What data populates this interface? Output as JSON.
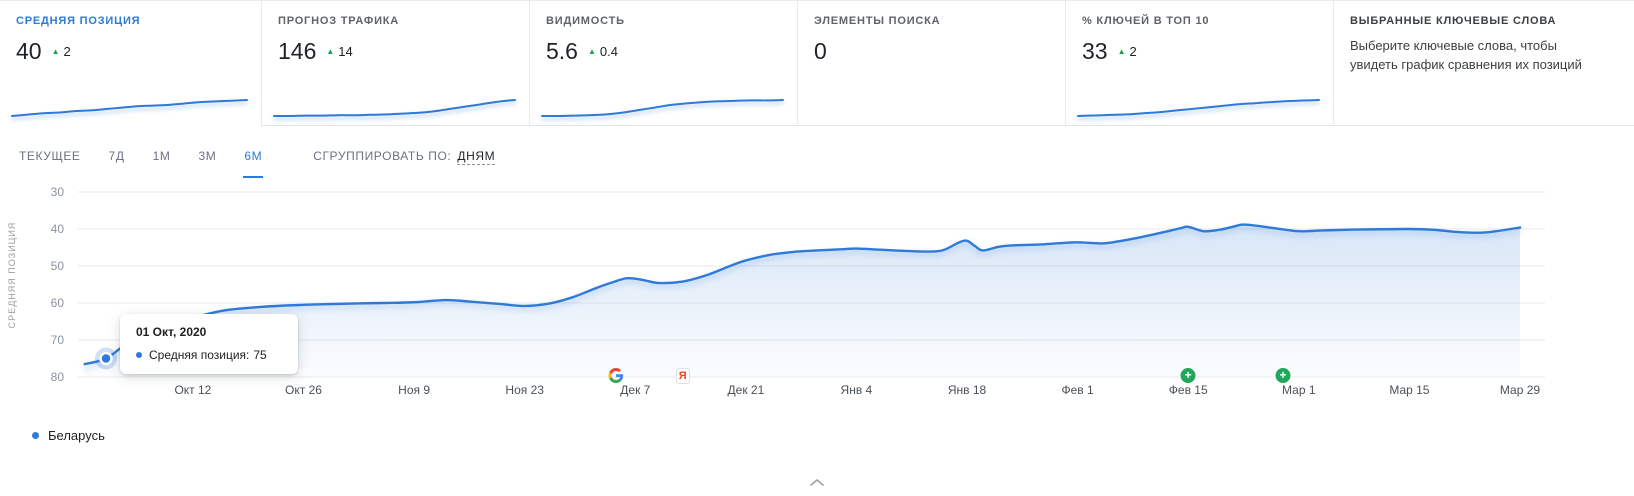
{
  "colors": {
    "accent": "#2b7cd9",
    "line": "#2f7ad9",
    "positive": "#14a24c"
  },
  "cards": [
    {
      "label": "СРЕДНЯЯ ПОЗИЦИЯ",
      "value": "40",
      "delta": "2",
      "active": true,
      "spark": [
        20,
        22,
        24,
        25,
        27,
        28,
        30,
        32,
        34,
        35,
        36,
        38,
        40,
        41,
        42,
        43
      ]
    },
    {
      "label": "ПРОГНОЗ ТРАФИКА",
      "value": "146",
      "delta": "14",
      "spark": [
        10,
        10,
        11,
        11,
        12,
        12,
        13,
        14,
        16,
        18,
        22,
        28,
        34,
        40,
        46,
        50
      ]
    },
    {
      "label": "ВИДИМОСТЬ",
      "value": "5.6",
      "delta": "0.4",
      "spark": [
        10,
        10,
        11,
        12,
        14,
        18,
        24,
        30,
        36,
        40,
        43,
        45,
        46,
        47,
        47,
        48
      ]
    },
    {
      "label": "ЭЛЕМЕНТЫ ПОИСКА",
      "value": "0",
      "delta": null,
      "spark": null
    },
    {
      "label": "% КЛЮЧЕЙ В ТОП 10",
      "value": "33",
      "delta": "2",
      "spark": [
        12,
        13,
        14,
        15,
        17,
        19,
        22,
        25,
        28,
        31,
        34,
        36,
        38,
        40,
        41,
        42
      ]
    },
    {
      "label": "ВЫБРАННЫЕ КЛЮЧЕВЫЕ СЛОВА",
      "description": "Выберите ключевые слова, чтобы увидеть график сравнения их позиций"
    }
  ],
  "toolbar": {
    "ranges": [
      "ТЕКУЩЕЕ",
      "7Д",
      "1М",
      "3М",
      "6М"
    ],
    "active_range": "6М",
    "group_by_label": "СГРУППИРОВАТЬ ПО:",
    "group_by_value": "ДНЯМ"
  },
  "tooltip": {
    "date": "01 Окт, 2020",
    "series": "Средняя позиция:",
    "value": "75"
  },
  "legend": [
    {
      "label": "Беларусь",
      "color": "#2f7ad9"
    }
  ],
  "chart_data": {
    "type": "line",
    "title": "Средняя позиция",
    "ylabel": "СРЕДНЯЯ ПОЗИЦИЯ",
    "ylim": [
      30,
      80
    ],
    "y_inverted": true,
    "grid": "horizontal",
    "yticks": [
      30,
      40,
      50,
      60,
      70,
      80
    ],
    "xticks": [
      {
        "day": 11,
        "label": "Окт 12"
      },
      {
        "day": 25,
        "label": "Окт 26"
      },
      {
        "day": 39,
        "label": "Ноя 9"
      },
      {
        "day": 53,
        "label": "Ноя 23"
      },
      {
        "day": 67,
        "label": "Дек 7"
      },
      {
        "day": 81,
        "label": "Дек 21"
      },
      {
        "day": 95,
        "label": "Янв 4"
      },
      {
        "day": 109,
        "label": "Янв 18"
      },
      {
        "day": 123,
        "label": "Фев 1"
      },
      {
        "day": 137,
        "label": "Фев 15"
      },
      {
        "day": 151,
        "label": "Мар 1"
      },
      {
        "day": 165,
        "label": "Мар 15"
      },
      {
        "day": 179,
        "label": "Мар 29"
      }
    ],
    "series": [
      {
        "name": "Беларусь",
        "color": "#2f7ad9",
        "points": [
          [
            -2.7,
            76.5
          ],
          [
            0,
            75
          ],
          [
            3,
            70.5
          ],
          [
            7,
            66.5
          ],
          [
            11,
            64
          ],
          [
            15,
            62
          ],
          [
            20,
            61
          ],
          [
            25,
            60.5
          ],
          [
            30,
            60.2
          ],
          [
            35,
            60
          ],
          [
            39,
            59.8
          ],
          [
            43,
            59.2
          ],
          [
            46,
            59.6
          ],
          [
            50,
            60.3
          ],
          [
            53,
            60.8
          ],
          [
            56,
            60.2
          ],
          [
            59,
            58.5
          ],
          [
            62,
            56
          ],
          [
            64,
            54.5
          ],
          [
            66,
            53.3
          ],
          [
            68,
            53.8
          ],
          [
            70,
            54.6
          ],
          [
            73,
            54.2
          ],
          [
            76,
            52.5
          ],
          [
            79,
            50
          ],
          [
            81,
            48.5
          ],
          [
            84,
            47
          ],
          [
            87,
            46.2
          ],
          [
            90,
            45.8
          ],
          [
            93,
            45.5
          ],
          [
            95,
            45.3
          ],
          [
            98,
            45.6
          ],
          [
            101,
            45.9
          ],
          [
            104,
            46.1
          ],
          [
            106,
            45.7
          ],
          [
            108,
            43.6
          ],
          [
            109,
            43.2
          ],
          [
            110,
            44.6
          ],
          [
            111,
            45.8
          ],
          [
            113,
            44.8
          ],
          [
            115,
            44.4
          ],
          [
            118,
            44.2
          ],
          [
            121,
            43.8
          ],
          [
            123,
            43.6
          ],
          [
            126,
            43.9
          ],
          [
            128,
            43.4
          ],
          [
            131,
            42.2
          ],
          [
            134,
            40.8
          ],
          [
            136,
            39.8
          ],
          [
            137,
            39.4
          ],
          [
            139,
            40.6
          ],
          [
            141,
            40.2
          ],
          [
            143,
            39.2
          ],
          [
            144,
            38.8
          ],
          [
            146,
            39.2
          ],
          [
            148,
            39.8
          ],
          [
            151,
            40.6
          ],
          [
            154,
            40.4
          ],
          [
            157,
            40.2
          ],
          [
            160,
            40.1
          ],
          [
            165,
            40
          ],
          [
            168,
            40.2
          ],
          [
            171,
            40.8
          ],
          [
            174,
            41
          ],
          [
            176,
            40.6
          ],
          [
            179,
            39.6
          ]
        ]
      }
    ],
    "markers": [
      {
        "day": 64.5,
        "type": "google"
      },
      {
        "day": 73,
        "type": "yandex"
      },
      {
        "day": 137,
        "type": "plus"
      },
      {
        "day": 149,
        "type": "plus"
      }
    ],
    "highlight": {
      "day": 0,
      "value": 75
    }
  }
}
